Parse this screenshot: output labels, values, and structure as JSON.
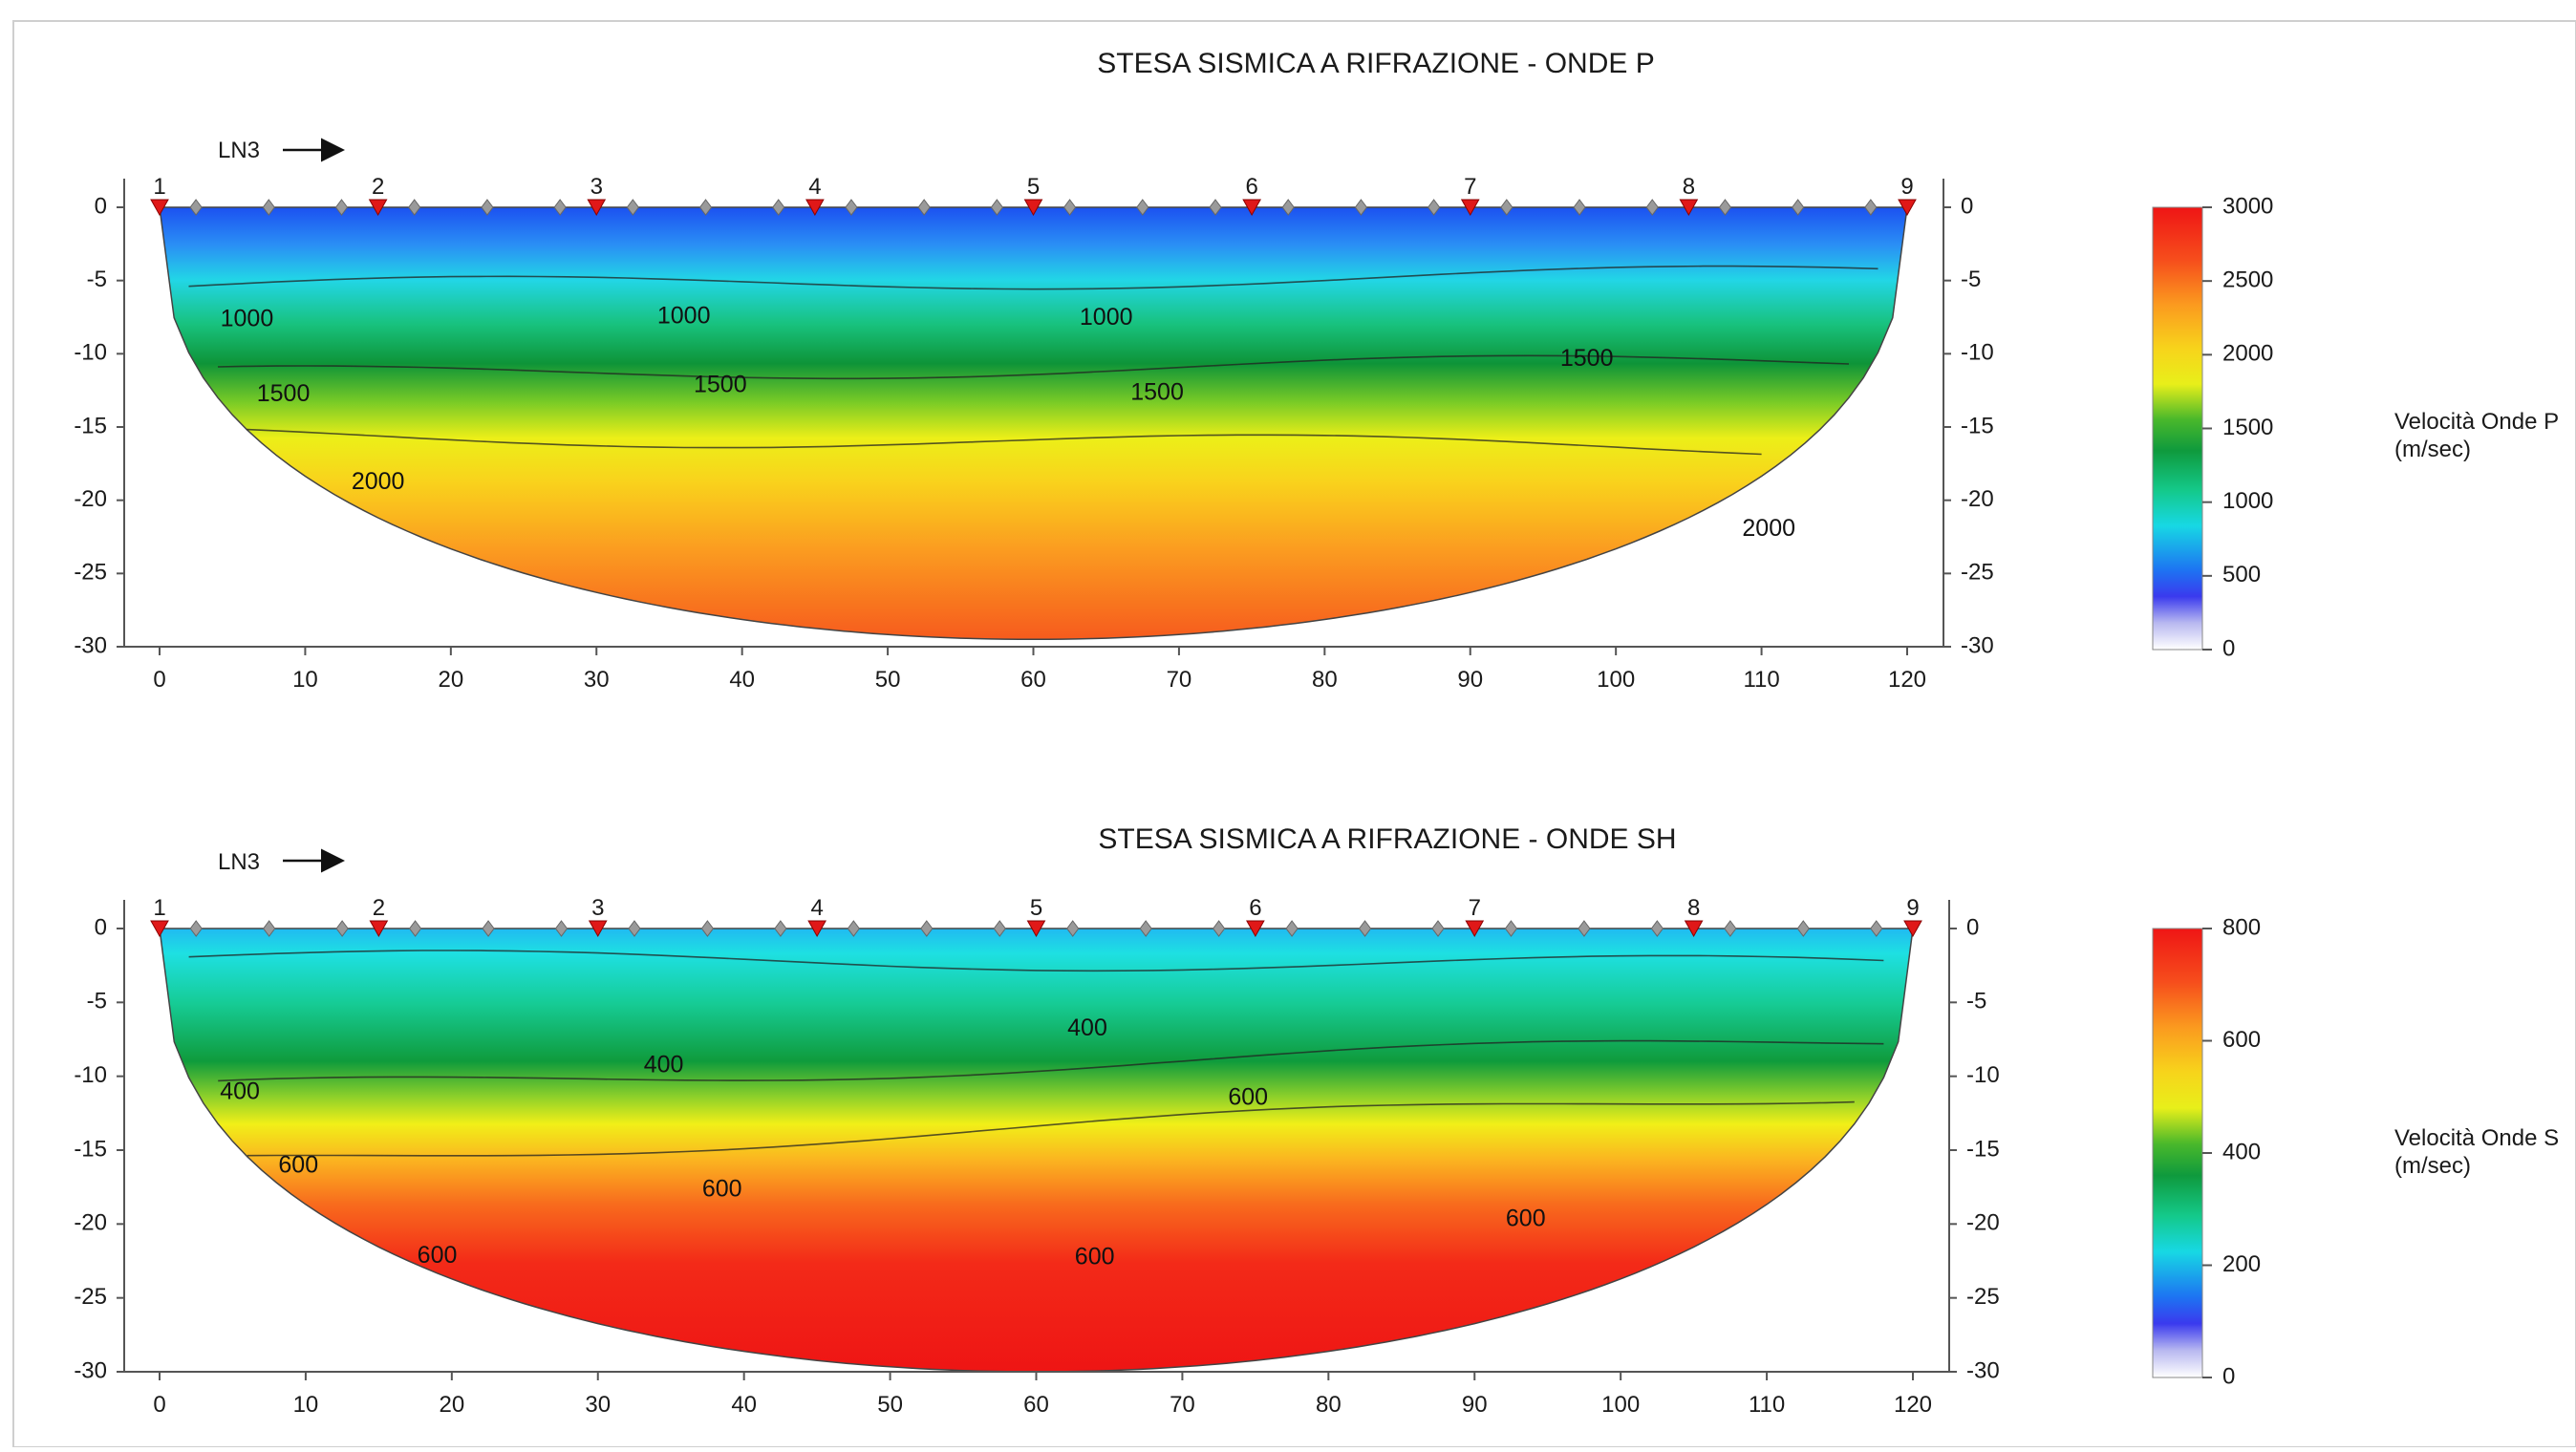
{
  "chart_data": [
    {
      "type": "heatmap",
      "title": "STESA SISMICA A RIFRAZIONE - ONDE P",
      "profile_label": "LN3",
      "x_ticks": [
        0,
        10,
        20,
        30,
        40,
        50,
        60,
        70,
        80,
        90,
        100,
        110,
        120
      ],
      "y_ticks": [
        0,
        -5,
        -10,
        -15,
        -20,
        -25,
        -30
      ],
      "xlim": [
        0,
        120
      ],
      "ylim": [
        -30,
        0
      ],
      "shots": [
        {
          "label": "1",
          "x": 0
        },
        {
          "label": "2",
          "x": 15
        },
        {
          "label": "3",
          "x": 30
        },
        {
          "label": "4",
          "x": 45
        },
        {
          "label": "5",
          "x": 60
        },
        {
          "label": "6",
          "x": 75
        },
        {
          "label": "7",
          "x": 90
        },
        {
          "label": "8",
          "x": 105
        },
        {
          "label": "9",
          "x": 120
        }
      ],
      "geophones": [
        2.5,
        7.5,
        12.5,
        17.5,
        22.5,
        27.5,
        32.5,
        37.5,
        42.5,
        47.5,
        52.5,
        57.5,
        62.5,
        67.5,
        72.5,
        77.5,
        82.5,
        87.5,
        92.5,
        97.5,
        102.5,
        107.5,
        112.5,
        117.5
      ],
      "colorbar": {
        "ticks": [
          "3000",
          "2500",
          "2000",
          "1500",
          "1000",
          "500",
          "0"
        ],
        "label_line1": "Velocità Onde P",
        "label_line2": "(m/sec)",
        "range": [
          0,
          3000
        ]
      },
      "bottom_depth_max": -29.5,
      "layer_bands": [
        {
          "value": 1000,
          "depth_left": -5.5,
          "depth_right": -4.5
        },
        {
          "value": 1500,
          "depth_left": -11.5,
          "depth_right": -10.5
        },
        {
          "value": 2000,
          "depth_left": -15.5,
          "depth_right": -16.5
        }
      ],
      "contour_labels": [
        {
          "text": "1000",
          "x": 6,
          "y": -7.7
        },
        {
          "text": "1000",
          "x": 36,
          "y": -7.5
        },
        {
          "text": "1000",
          "x": 65,
          "y": -7.6
        },
        {
          "text": "1500",
          "x": 8.5,
          "y": -12.8
        },
        {
          "text": "1500",
          "x": 38.5,
          "y": -12.2
        },
        {
          "text": "1500",
          "x": 68.5,
          "y": -12.7
        },
        {
          "text": "1500",
          "x": 98,
          "y": -10.4
        },
        {
          "text": "2000",
          "x": 15,
          "y": -18.8
        },
        {
          "text": "2000",
          "x": 110.5,
          "y": -22
        }
      ]
    },
    {
      "type": "heatmap",
      "title": "STESA SISMICA A RIFRAZIONE - ONDE SH",
      "profile_label": "LN3",
      "x_ticks": [
        0,
        10,
        20,
        30,
        40,
        50,
        60,
        70,
        80,
        90,
        100,
        110,
        120
      ],
      "y_ticks": [
        0,
        -5,
        -10,
        -15,
        -20,
        -25,
        -30
      ],
      "xlim": [
        0,
        120
      ],
      "ylim": [
        -30,
        0
      ],
      "shots": [
        {
          "label": "1",
          "x": 0
        },
        {
          "label": "2",
          "x": 15
        },
        {
          "label": "3",
          "x": 30
        },
        {
          "label": "4",
          "x": 45
        },
        {
          "label": "5",
          "x": 60
        },
        {
          "label": "6",
          "x": 75
        },
        {
          "label": "7",
          "x": 90
        },
        {
          "label": "8",
          "x": 105
        },
        {
          "label": "9",
          "x": 120
        }
      ],
      "geophones": [
        2.5,
        7.5,
        12.5,
        17.5,
        22.5,
        27.5,
        32.5,
        37.5,
        42.5,
        47.5,
        52.5,
        57.5,
        62.5,
        67.5,
        72.5,
        77.5,
        82.5,
        87.5,
        92.5,
        97.5,
        102.5,
        107.5,
        112.5,
        117.5
      ],
      "colorbar": {
        "ticks": [
          "800",
          "600",
          "400",
          "200",
          "0"
        ],
        "label_line1": "Velocità Onde S",
        "label_line2": "(m/sec)",
        "range": [
          0,
          800
        ]
      },
      "bottom_depth_max": -30,
      "layer_bands": [
        {
          "value": 200,
          "depth_left": -2,
          "depth_right": -2.5
        },
        {
          "value": 400,
          "depth_left": -11,
          "depth_right": -7.5
        },
        {
          "value": 600,
          "depth_left": -16,
          "depth_right": -11
        }
      ],
      "contour_labels": [
        {
          "text": "400",
          "x": 5.5,
          "y": -11.1
        },
        {
          "text": "400",
          "x": 34.5,
          "y": -9.3
        },
        {
          "text": "400",
          "x": 63.5,
          "y": -6.8
        },
        {
          "text": "600",
          "x": 9.5,
          "y": -16.1
        },
        {
          "text": "600",
          "x": 38.5,
          "y": -17.7
        },
        {
          "text": "600",
          "x": 74.5,
          "y": -11.5
        },
        {
          "text": "600",
          "x": 19,
          "y": -22.2
        },
        {
          "text": "600",
          "x": 64,
          "y": -22.3
        },
        {
          "text": "600",
          "x": 93.5,
          "y": -19.7
        }
      ]
    }
  ]
}
